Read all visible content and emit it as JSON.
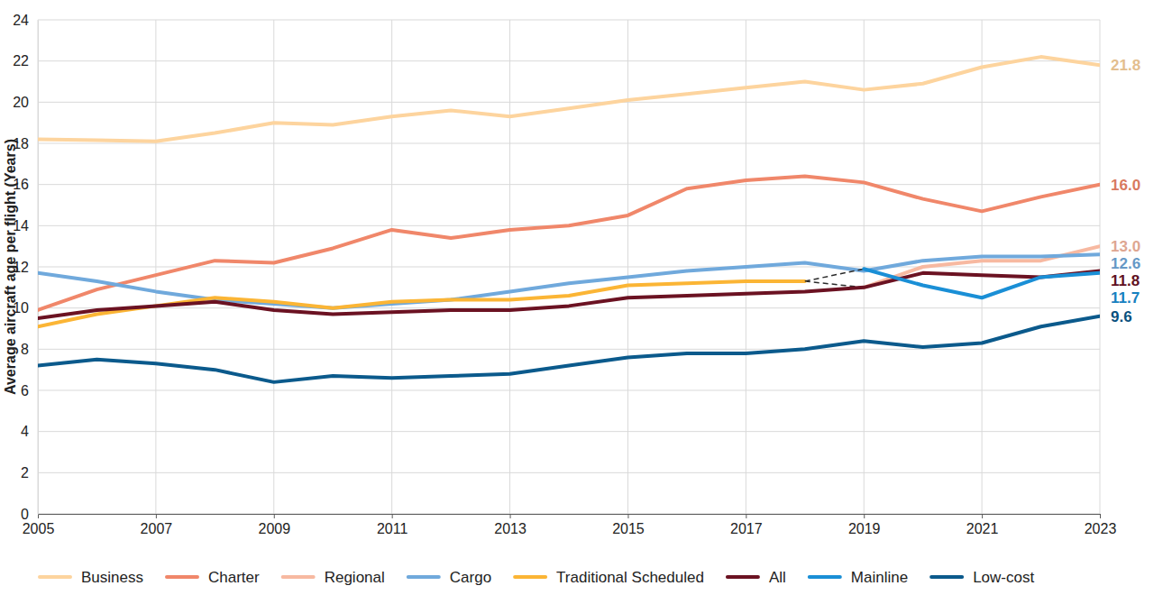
{
  "chart_data": {
    "type": "line",
    "y_label": "Average aircraft age per flight (Years)",
    "x": [
      2005,
      2006,
      2007,
      2008,
      2009,
      2010,
      2011,
      2012,
      2013,
      2014,
      2015,
      2016,
      2017,
      2018,
      2019,
      2020,
      2021,
      2022,
      2023
    ],
    "xlim": [
      2005,
      2023
    ],
    "xticks": [
      2005,
      2007,
      2009,
      2011,
      2013,
      2015,
      2017,
      2019,
      2021,
      2023
    ],
    "ylim": [
      0,
      24
    ],
    "yticks": [
      0,
      2,
      4,
      6,
      8,
      10,
      12,
      14,
      16,
      18,
      20,
      22,
      24
    ],
    "grid": true,
    "legend": "bottom",
    "data_labels": true,
    "series": [
      {
        "name": "Business",
        "color": "#fdd49e",
        "values": [
          18.2,
          18.15,
          18.1,
          18.5,
          19.0,
          18.9,
          19.3,
          19.6,
          19.3,
          19.7,
          20.1,
          20.4,
          20.7,
          21.0,
          20.6,
          20.9,
          21.7,
          22.2,
          21.8
        ],
        "value_labels": [
          null,
          null,
          null,
          null,
          null,
          null,
          null,
          null,
          null,
          null,
          null,
          null,
          null,
          null,
          null,
          null,
          null,
          null,
          "21.8"
        ]
      },
      {
        "name": "Charter",
        "color": "#f0876a",
        "values": [
          9.9,
          10.9,
          11.6,
          12.3,
          12.2,
          12.9,
          13.8,
          13.4,
          13.8,
          14.0,
          14.5,
          15.8,
          16.2,
          16.4,
          16.1,
          15.3,
          14.7,
          15.4,
          16.0
        ],
        "value_labels": [
          null,
          null,
          null,
          null,
          null,
          null,
          null,
          null,
          null,
          null,
          null,
          null,
          null,
          null,
          null,
          null,
          null,
          null,
          "16.0"
        ]
      },
      {
        "name": "Regional",
        "color": "#f7b9a1",
        "values": [
          null,
          null,
          null,
          null,
          null,
          null,
          null,
          null,
          null,
          null,
          null,
          null,
          null,
          11.3,
          11.0,
          12.0,
          12.3,
          12.3,
          13.0
        ],
        "value_labels": [
          null,
          null,
          null,
          null,
          null,
          null,
          null,
          null,
          null,
          null,
          null,
          null,
          null,
          null,
          null,
          null,
          null,
          null,
          "13.0"
        ]
      },
      {
        "name": "Cargo",
        "color": "#70a9dc",
        "values": [
          11.7,
          11.3,
          10.8,
          10.4,
          10.2,
          10.0,
          10.2,
          10.4,
          10.8,
          11.2,
          11.5,
          11.8,
          12.0,
          12.2,
          11.8,
          12.3,
          12.5,
          12.5,
          12.6
        ],
        "value_labels": [
          null,
          null,
          null,
          null,
          null,
          null,
          null,
          null,
          null,
          null,
          null,
          null,
          null,
          null,
          null,
          null,
          null,
          null,
          "12.6"
        ]
      },
      {
        "name": "Traditional Scheduled",
        "color": "#fbb535",
        "values": [
          9.1,
          9.7,
          10.1,
          10.5,
          10.3,
          10.0,
          10.3,
          10.4,
          10.4,
          10.6,
          11.1,
          11.2,
          11.3,
          11.3,
          null,
          null,
          null,
          null,
          null
        ]
      },
      {
        "name": "All",
        "color": "#6b1222",
        "values": [
          9.5,
          9.9,
          10.1,
          10.3,
          9.9,
          9.7,
          9.8,
          9.9,
          9.9,
          10.1,
          10.5,
          10.6,
          10.7,
          10.8,
          11.0,
          11.7,
          11.6,
          11.5,
          11.8
        ],
        "value_labels": [
          null,
          null,
          null,
          null,
          null,
          null,
          null,
          null,
          null,
          null,
          null,
          null,
          null,
          null,
          null,
          null,
          null,
          null,
          "11.8"
        ]
      },
      {
        "name": "Mainline",
        "color": "#1a8fd6",
        "values": [
          null,
          null,
          null,
          null,
          null,
          null,
          null,
          null,
          null,
          null,
          null,
          null,
          null,
          11.3,
          11.9,
          11.1,
          10.5,
          11.5,
          11.7
        ],
        "value_labels": [
          null,
          null,
          null,
          null,
          null,
          null,
          null,
          null,
          null,
          null,
          null,
          null,
          null,
          null,
          null,
          null,
          null,
          null,
          "11.7"
        ]
      },
      {
        "name": "Low-cost",
        "color": "#0b5a8c",
        "values": [
          7.2,
          7.5,
          7.3,
          7.0,
          6.4,
          6.7,
          6.6,
          6.7,
          6.8,
          7.2,
          7.6,
          7.8,
          7.8,
          8.0,
          8.4,
          8.1,
          8.3,
          9.1,
          9.6
        ],
        "value_labels": [
          null,
          null,
          null,
          null,
          null,
          null,
          null,
          null,
          null,
          null,
          null,
          null,
          null,
          null,
          null,
          null,
          null,
          null,
          "9.6"
        ]
      }
    ]
  }
}
